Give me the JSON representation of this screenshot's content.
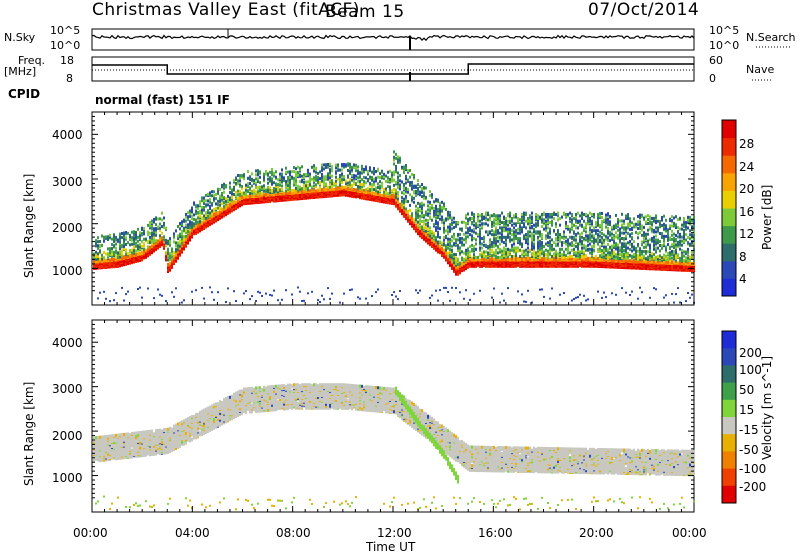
{
  "header": {
    "station": "Christmas Valley East (fitACF)",
    "beam": "Beam 15",
    "date": "07/Oct/2014"
  },
  "noise_panel": {
    "left_label": "N.Sky",
    "right_label": "N.Search",
    "left_ticks": [
      "10^5",
      "10^0"
    ],
    "right_ticks": [
      "10^5",
      "10^0"
    ]
  },
  "freq_panel": {
    "left_label_1": "Freq.",
    "left_label_2": "[MHz]",
    "right_label": "Nave",
    "left_ticks": [
      "18",
      "8"
    ],
    "right_ticks": [
      "60",
      "0"
    ]
  },
  "cpid": {
    "label": "CPID",
    "mode": "normal (fast) 151 IF"
  },
  "axes": {
    "x_label": "Time UT",
    "x_ticks": [
      "00:00",
      "04:00",
      "08:00",
      "12:00",
      "16:00",
      "20:00",
      "00:00"
    ],
    "y_label": "Slant Range [km]",
    "y_ticks": [
      "4000",
      "3000",
      "2000",
      "1000"
    ]
  },
  "colors": {
    "power": [
      "#1e2cd8",
      "#2a48b8",
      "#2e6e6a",
      "#3e9a4a",
      "#7ecb3a",
      "#e8d000",
      "#f7a400",
      "#f46a00",
      "#ee2a00",
      "#e00000"
    ],
    "velocity": [
      "#1e2cd8",
      "#2a48b8",
      "#2e6e6a",
      "#3fa04a",
      "#7ed63a",
      "#c8c8c0",
      "#e8b000",
      "#f08000",
      "#f04000",
      "#e00000"
    ]
  },
  "chart_data": [
    {
      "type": "heatmap",
      "title": "Power",
      "colorbar_label": "Power [dB]",
      "colorbar_ticks": [
        "28",
        "24",
        "20",
        "16",
        "12",
        "8",
        "4"
      ],
      "clim": [
        0,
        32
      ],
      "xlim_hours": [
        0,
        24
      ],
      "ylim_km": [
        180,
        4500
      ],
      "echo_bands": [
        {
          "t": [
            0,
            1,
            2,
            2.8,
            3,
            4,
            6,
            8,
            10,
            12,
            13,
            14,
            14.5,
            15,
            16,
            20,
            24
          ],
          "range_km": [
            1150,
            1200,
            1350,
            1700,
            1050,
            1900,
            2600,
            2700,
            2800,
            2600,
            1900,
            1400,
            1000,
            1200,
            1200,
            1200,
            1100
          ],
          "power_db": 30
        }
      ]
    },
    {
      "type": "heatmap",
      "title": "Velocity",
      "colorbar_label": "Velocity [m s^-1]",
      "colorbar_ticks": [
        "200",
        "100",
        "50",
        "15",
        "-15",
        "-50",
        "-100",
        "-200"
      ],
      "clim": [
        -250,
        250
      ],
      "xlim_hours": [
        0,
        24
      ],
      "ylim_km": [
        180,
        4500
      ],
      "echo_bands": [
        {
          "t": [
            0,
            3,
            6,
            8,
            10,
            12,
            15,
            24
          ],
          "range_km": [
            1600,
            1800,
            2700,
            2800,
            2800,
            2700,
            1400,
            1300
          ],
          "velocity": 0
        },
        {
          "t": [
            12,
            13,
            14,
            14.6
          ],
          "range_km": [
            3000,
            2200,
            1500,
            900
          ],
          "velocity": 30
        }
      ]
    }
  ]
}
